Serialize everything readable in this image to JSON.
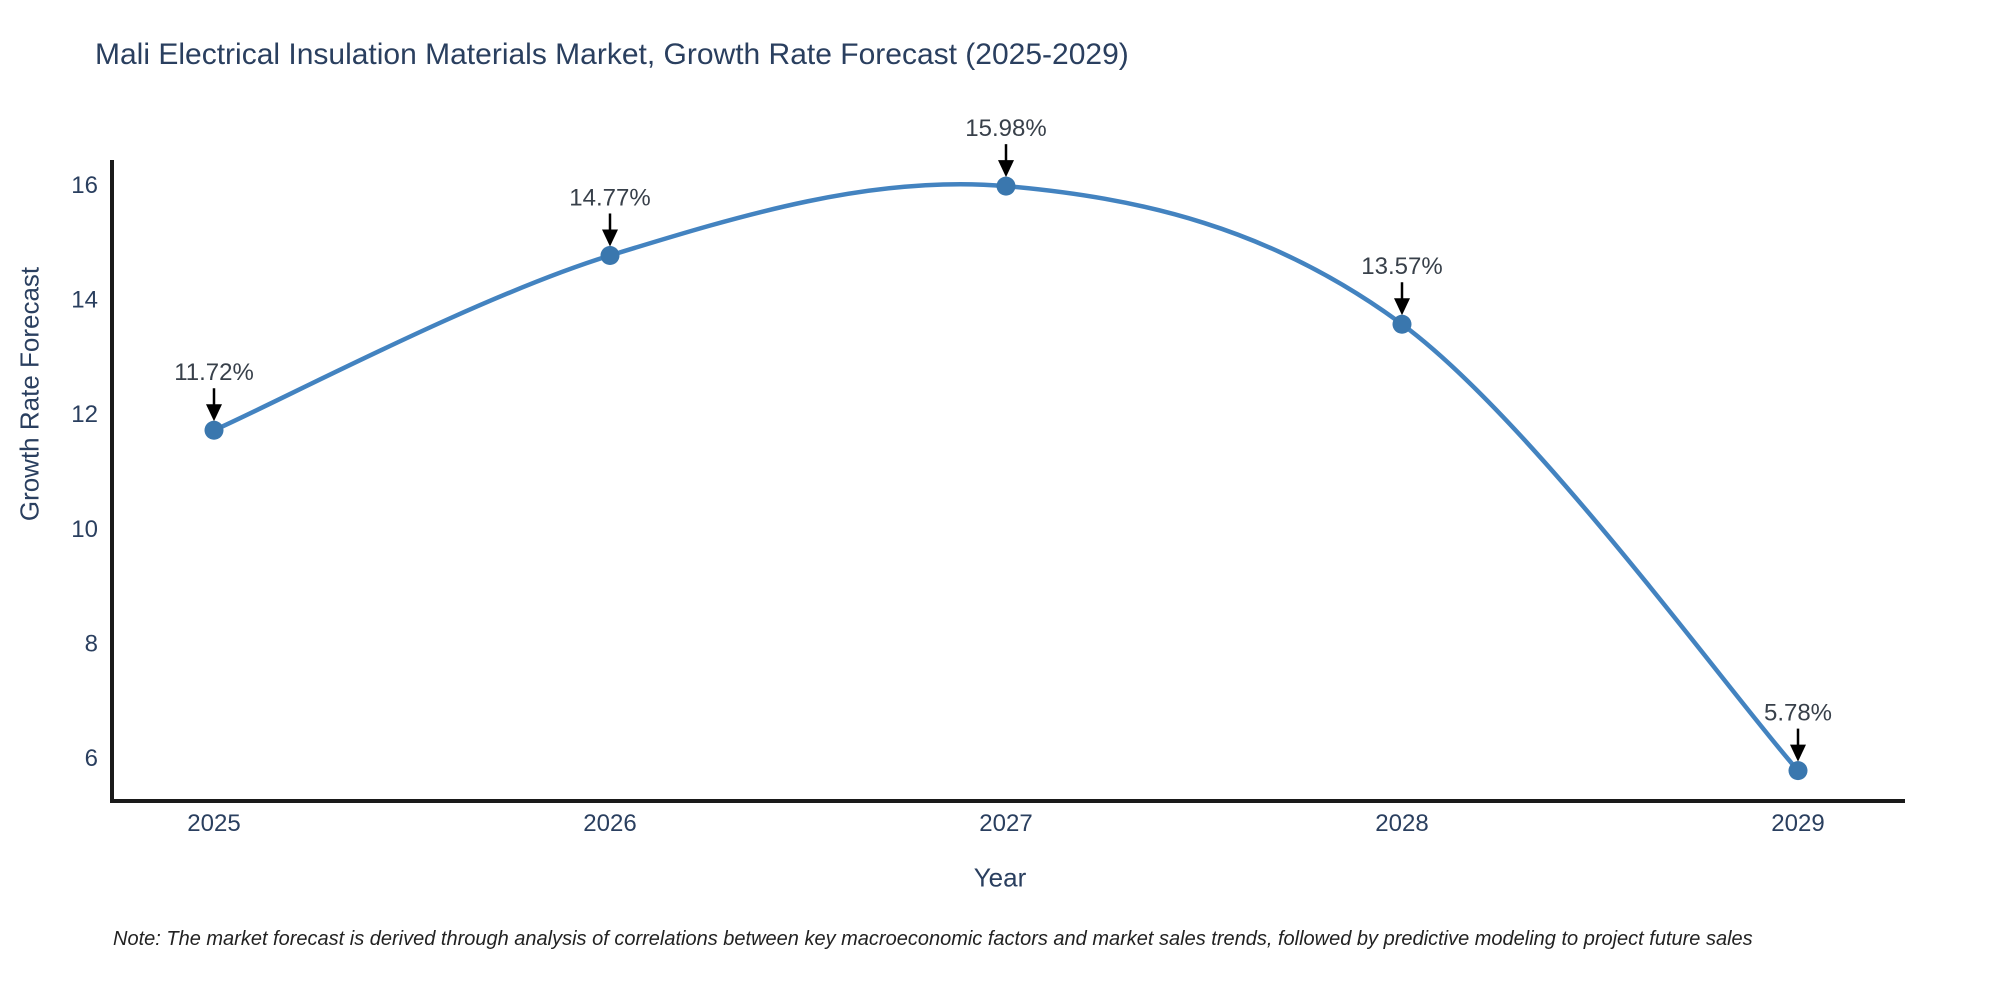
{
  "chart_data": {
    "type": "line",
    "line_shape": "spline",
    "title": "Mali Electrical Insulation Materials Market, Growth Rate Forecast (2025-2029)",
    "xlabel": "Year",
    "ylabel": "Growth Rate Forecast",
    "x": [
      2025,
      2026,
      2027,
      2028,
      2029
    ],
    "series": [
      {
        "name": "Growth Rate Forecast",
        "values": [
          11.72,
          14.77,
          15.98,
          13.57,
          5.78
        ]
      }
    ],
    "point_labels": [
      "11.72%",
      "14.77%",
      "15.98%",
      "13.57%",
      "5.78%"
    ],
    "yticks": [
      6,
      8,
      10,
      12,
      14,
      16
    ],
    "xticks": [
      "2025",
      "2026",
      "2027",
      "2028",
      "2029"
    ],
    "ylim": [
      5.2,
      17.1
    ],
    "grid": false,
    "legend_position": "none",
    "annotations_have_arrows": true,
    "colors": {
      "line": "#4383c0",
      "marker": "#3a77ae",
      "spine": "#1a1a1a",
      "tick_text": "#2a3f5f",
      "title_text": "#2a3f5f",
      "annotation_text": "#38404a",
      "arrow": "#000000"
    },
    "note": "Note: The market forecast is derived through analysis of correlations between key macroeconomic factors and market sales trends, followed by predictive modeling to project future sales"
  }
}
